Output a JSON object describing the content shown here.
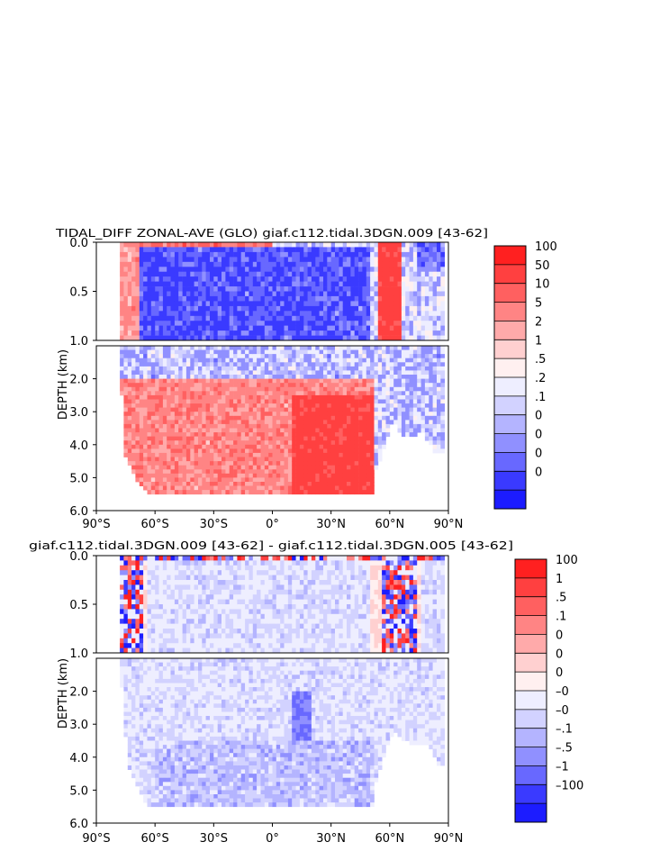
{
  "chart_data": [
    {
      "type": "heatmap",
      "title": "TIDAL_DIFF ZONAL-AVE (GLO) giaf.c112.tidal.3DGN.009 [43-62]",
      "ylabel": "DEPTH (km)",
      "xlabel": "",
      "xlim": [
        -90,
        90
      ],
      "ylim_upper": [
        0.0,
        1.0
      ],
      "ylim_lower": [
        1.0,
        6.0
      ],
      "xticks": [
        "90°S",
        "60°S",
        "30°S",
        "0°",
        "30°N",
        "60°N",
        "90°N"
      ],
      "yticks_upper": [
        "0.0",
        "0.5",
        "1.0"
      ],
      "yticks_lower": [
        "2.0",
        "3.0",
        "4.0",
        "5.0",
        "6.0"
      ],
      "colorbar_labels": [
        "100",
        "50",
        "10",
        "5",
        "2",
        "1",
        ".5",
        ".2",
        ".1",
        "0",
        "0",
        "0",
        "0"
      ],
      "colorbar_colors": [
        "#ff2020",
        "#ff4040",
        "#ff6060",
        "#ff8484",
        "#ffaaaa",
        "#ffd0d0",
        "#fff0f0",
        "#eeeeff",
        "#d2d2ff",
        "#b4b4ff",
        "#9090ff",
        "#6868ff",
        "#3a3aff",
        "#1c1cff"
      ],
      "land_color": "#ffffff",
      "bathymetry_depth_km": [
        [
          -78,
          0.9
        ],
        [
          -76,
          4.2
        ],
        [
          -72,
          4.8
        ],
        [
          -68,
          5.2
        ],
        [
          -64,
          5.5
        ],
        [
          -40,
          5.5
        ],
        [
          0,
          5.5
        ],
        [
          30,
          5.5
        ],
        [
          52,
          5.5
        ],
        [
          53,
          4.8
        ],
        [
          58,
          4.0
        ],
        [
          62,
          3.2
        ],
        [
          65,
          3.6
        ],
        [
          68,
          3.8
        ],
        [
          72,
          3.8
        ],
        [
          76,
          3.6
        ],
        [
          80,
          3.9
        ],
        [
          84,
          4.3
        ],
        [
          88,
          4.3
        ]
      ],
      "regions": [
        {
          "lat": [
            -78,
            0
          ],
          "depth_km": [
            0,
            0.05
          ],
          "mean_value": 5
        },
        {
          "lat": [
            -72,
            50
          ],
          "depth_km": [
            0.05,
            1.0
          ],
          "mean_value": -1
        },
        {
          "lat": [
            -78,
            -68
          ],
          "depth_km": [
            0,
            1.0
          ],
          "mean_value": 2
        },
        {
          "lat": [
            55,
            65
          ],
          "depth_km": [
            0,
            1.0
          ],
          "mean_value": 20
        },
        {
          "lat": [
            75,
            88
          ],
          "depth_km": [
            0,
            0.3
          ],
          "mean_value": -0.5
        },
        {
          "lat": [
            -78,
            52
          ],
          "depth_km": [
            1.0,
            2.0
          ],
          "mean_value": -0.1
        },
        {
          "lat": [
            -78,
            52
          ],
          "depth_km": [
            2.0,
            5.5
          ],
          "mean_value": 3
        },
        {
          "lat": [
            10,
            52
          ],
          "depth_km": [
            2.5,
            5.5
          ],
          "mean_value": 20
        },
        {
          "lat": [
            60,
            88
          ],
          "depth_km": [
            1.0,
            4.3
          ],
          "mean_value": -0.1
        }
      ]
    },
    {
      "type": "heatmap",
      "title": "giaf.c112.tidal.3DGN.009 [43-62] - giaf.c112.tidal.3DGN.005 [43-62]",
      "ylabel": "DEPTH (km)",
      "xlabel": "",
      "xlim": [
        -90,
        90
      ],
      "ylim_upper": [
        0.0,
        1.0
      ],
      "ylim_lower": [
        1.0,
        6.0
      ],
      "xticks": [
        "90°S",
        "60°S",
        "30°S",
        "0°",
        "30°N",
        "60°N",
        "90°N"
      ],
      "yticks_upper": [
        "0.0",
        "0.5",
        "1.0"
      ],
      "yticks_lower": [
        "2.0",
        "3.0",
        "4.0",
        "5.0",
        "6.0"
      ],
      "colorbar_labels": [
        "100",
        "1",
        ".5",
        ".1",
        "0",
        "0",
        "0",
        "–0",
        "–0",
        "–.1",
        "–.5",
        "–1",
        "–100"
      ],
      "colorbar_colors": [
        "#ff2020",
        "#ff4040",
        "#ff6060",
        "#ff8484",
        "#ffaaaa",
        "#ffd0d0",
        "#fff0f0",
        "#eeeeff",
        "#d2d2ff",
        "#b4b4ff",
        "#9090ff",
        "#6868ff",
        "#3a3aff",
        "#1c1cff"
      ],
      "land_color": "#ffffff",
      "bathymetry_depth_km": [
        [
          -78,
          1.1
        ],
        [
          -74,
          4.2
        ],
        [
          -70,
          4.8
        ],
        [
          -66,
          5.2
        ],
        [
          -64,
          5.5
        ],
        [
          0,
          5.5
        ],
        [
          30,
          5.5
        ],
        [
          52,
          5.5
        ],
        [
          53,
          4.8
        ],
        [
          58,
          3.8
        ],
        [
          62,
          3.2
        ],
        [
          70,
          3.6
        ],
        [
          80,
          3.6
        ],
        [
          84,
          4.2
        ],
        [
          88,
          4.3
        ]
      ],
      "regions": [
        {
          "lat": [
            -78,
            88
          ],
          "depth_km": [
            0,
            0.05
          ],
          "mean_value": 0.5
        },
        {
          "lat": [
            -78,
            88
          ],
          "depth_km": [
            0.05,
            5.5
          ],
          "mean_value": 0
        },
        {
          "lat": [
            50,
            75
          ],
          "depth_km": [
            0,
            1.0
          ],
          "mean_value": 0.5
        },
        {
          "lat": [
            -78,
            -65
          ],
          "depth_km": [
            0,
            1.0
          ],
          "mean_value": 0.5
        },
        {
          "lat": [
            10,
            20
          ],
          "depth_km": [
            2.0,
            3.5
          ],
          "mean_value": -0.5
        },
        {
          "lat": [
            -60,
            52
          ],
          "depth_km": [
            3.5,
            5.5
          ],
          "mean_value": -0.1
        }
      ]
    }
  ]
}
